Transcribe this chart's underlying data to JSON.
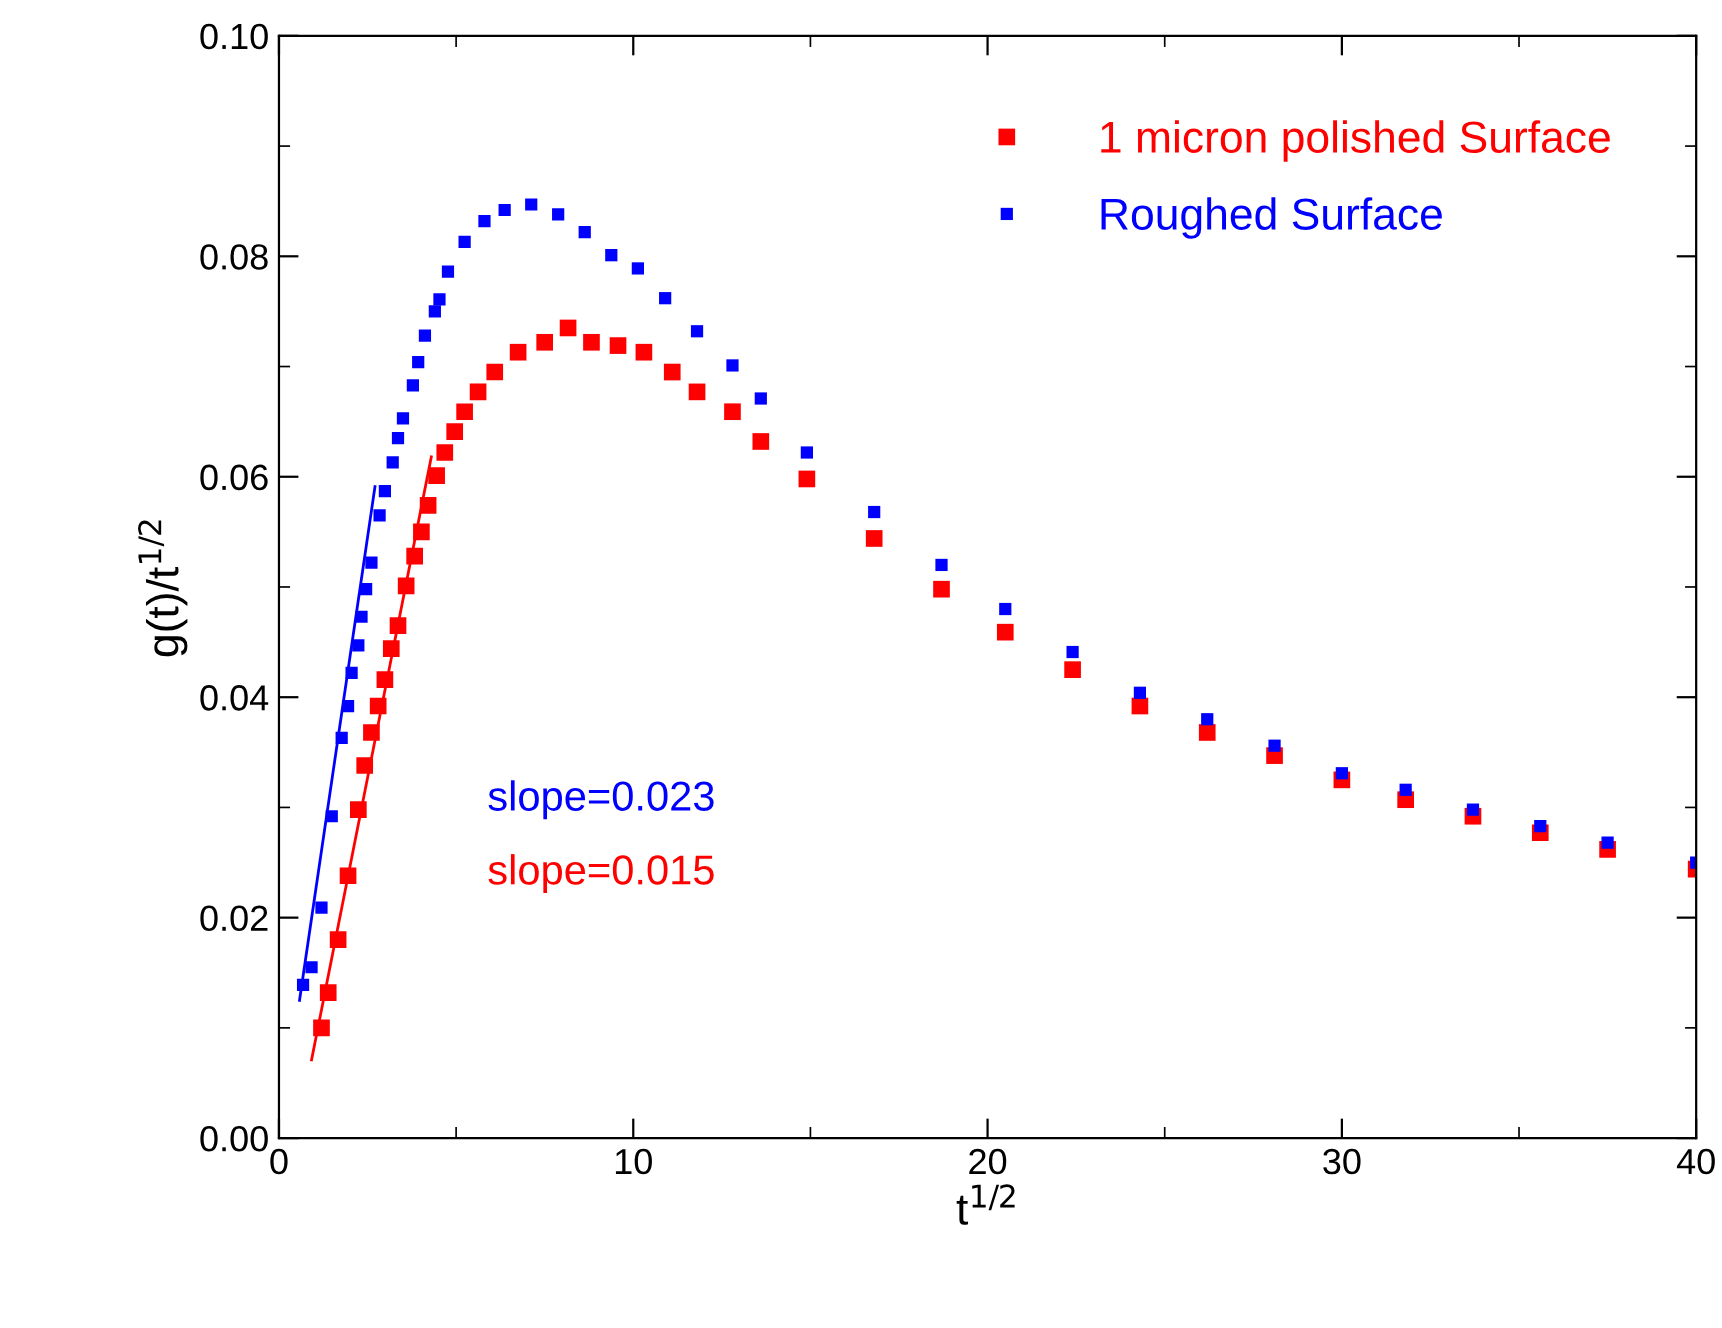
{
  "chart_data": {
    "type": "scatter",
    "xlabel": "t$^{1/2}$",
    "ylabel": "g(t)/t$^{1/2}$",
    "xlim": [
      0,
      40
    ],
    "xticks": [
      0,
      10,
      20,
      30,
      40
    ],
    "ylim": [
      0,
      0.1
    ],
    "yticks": [
      {
        "value": 0,
        "label": "0.00"
      },
      {
        "value": 0.02,
        "label": "0.02"
      },
      {
        "value": 0.04,
        "label": "0.04"
      },
      {
        "value": 0.06,
        "label": "0.06"
      },
      {
        "value": 0.08,
        "label": "0.08"
      },
      {
        "value": 0.1,
        "label": "0.10"
      }
    ],
    "grid": false,
    "legend": "top right",
    "series": [
      {
        "name": "1 micron polished Surface",
        "marker": "square",
        "color": "#ff0000",
        "x": [
          1.2,
          1.39,
          1.67,
          1.95,
          2.24,
          2.42,
          2.61,
          2.8,
          2.99,
          3.17,
          3.36,
          3.59,
          3.83,
          4.02,
          4.21,
          4.45,
          4.68,
          4.96,
          5.24,
          5.62,
          6.09,
          6.75,
          7.5,
          8.16,
          8.82,
          9.57,
          10.3,
          11.1,
          11.8,
          12.8,
          13.6,
          14.9,
          16.8,
          18.7,
          20.5,
          22.4,
          24.3,
          26.2,
          28.1,
          30.0,
          31.8,
          33.7,
          35.6,
          37.5,
          40
        ],
        "values": [
          0.01,
          0.0132,
          0.018,
          0.0238,
          0.0298,
          0.0338,
          0.0368,
          0.0392,
          0.0416,
          0.0444,
          0.0465,
          0.0501,
          0.0528,
          0.055,
          0.0574,
          0.0601,
          0.0622,
          0.0641,
          0.0659,
          0.0677,
          0.0695,
          0.0713,
          0.0722,
          0.0735,
          0.0722,
          0.0719,
          0.0713,
          0.0695,
          0.0677,
          0.0659,
          0.0632,
          0.0598,
          0.0544,
          0.0498,
          0.0459,
          0.0425,
          0.0392,
          0.0368,
          0.0347,
          0.0325,
          0.0307,
          0.0292,
          0.0277,
          0.0262,
          0.0244
        ]
      },
      {
        "name": "Roughed Surface",
        "marker": "square",
        "color": "#0000ff",
        "x": [
          0.68,
          0.92,
          1.2,
          1.49,
          1.77,
          1.95,
          2.05,
          2.24,
          2.33,
          2.46,
          2.61,
          2.84,
          2.99,
          3.21,
          3.36,
          3.5,
          3.78,
          3.93,
          4.12,
          4.4,
          4.53,
          4.77,
          5.24,
          5.8,
          6.37,
          7.12,
          7.88,
          8.63,
          9.38,
          10.13,
          10.9,
          11.8,
          12.8,
          13.6,
          14.9,
          16.8,
          18.7,
          20.5,
          22.4,
          24.3,
          26.2,
          28.1,
          30.0,
          31.8,
          33.7,
          35.6,
          37.5,
          40
        ],
        "values": [
          0.0139,
          0.0155,
          0.0209,
          0.0292,
          0.0363,
          0.0392,
          0.0422,
          0.0447,
          0.0473,
          0.0498,
          0.0522,
          0.0565,
          0.0587,
          0.0613,
          0.0635,
          0.0653,
          0.0683,
          0.0704,
          0.0728,
          0.075,
          0.0761,
          0.0786,
          0.0813,
          0.0832,
          0.0842,
          0.0847,
          0.0838,
          0.0822,
          0.0801,
          0.0789,
          0.0762,
          0.0732,
          0.0701,
          0.0671,
          0.0622,
          0.0568,
          0.052,
          0.048,
          0.0441,
          0.0404,
          0.038,
          0.0356,
          0.0331,
          0.0316,
          0.0298,
          0.0283,
          0.0268,
          0.025
        ]
      },
      {
        "type": "line",
        "color": "#0000ff",
        "x": [
          0.58,
          2.71
        ],
        "values": [
          0.0125,
          0.0591
        ]
      },
      {
        "type": "line",
        "color": "#ff0000",
        "x": [
          0.92,
          4.3
        ],
        "values": [
          0.0071,
          0.0618
        ]
      }
    ],
    "annotations": [
      "slope=0.023",
      "slope=0.015"
    ]
  }
}
